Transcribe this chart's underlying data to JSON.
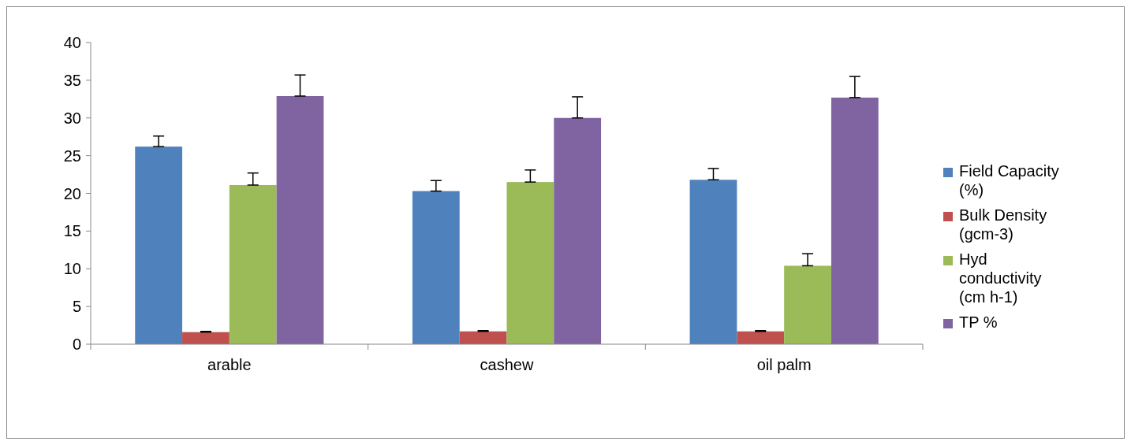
{
  "chart_data": {
    "type": "bar",
    "categories": [
      "arable",
      "cashew",
      "oil palm"
    ],
    "series": [
      {
        "name": "Field Capacity (%)",
        "color": "#4f81bd",
        "values": [
          26.2,
          20.3,
          21.8
        ],
        "errors": [
          [
            26.2,
            27.6
          ],
          [
            20.3,
            21.7
          ],
          [
            21.8,
            23.3
          ]
        ]
      },
      {
        "name": "Bulk Density (gcm-3)",
        "color": "#c0504d",
        "values": [
          1.6,
          1.7,
          1.7
        ],
        "errors": [
          [
            1.6,
            1.7
          ],
          [
            1.7,
            1.8
          ],
          [
            1.7,
            1.8
          ]
        ]
      },
      {
        "name": "Hyd conductivity (cm h-1)",
        "color": "#9bbb59",
        "values": [
          21.1,
          21.5,
          10.4
        ],
        "errors": [
          [
            21.1,
            22.7
          ],
          [
            21.5,
            23.1
          ],
          [
            10.4,
            12.0
          ]
        ]
      },
      {
        "name": "TP %",
        "color": "#8064a2",
        "values": [
          32.9,
          30.0,
          32.7
        ],
        "errors": [
          [
            32.9,
            35.7
          ],
          [
            30.0,
            32.8
          ],
          [
            32.7,
            35.5
          ]
        ]
      }
    ],
    "ylim": [
      0,
      40
    ],
    "yticks": [
      0,
      5,
      10,
      15,
      20,
      25,
      30,
      35,
      40
    ],
    "legend": "right"
  }
}
